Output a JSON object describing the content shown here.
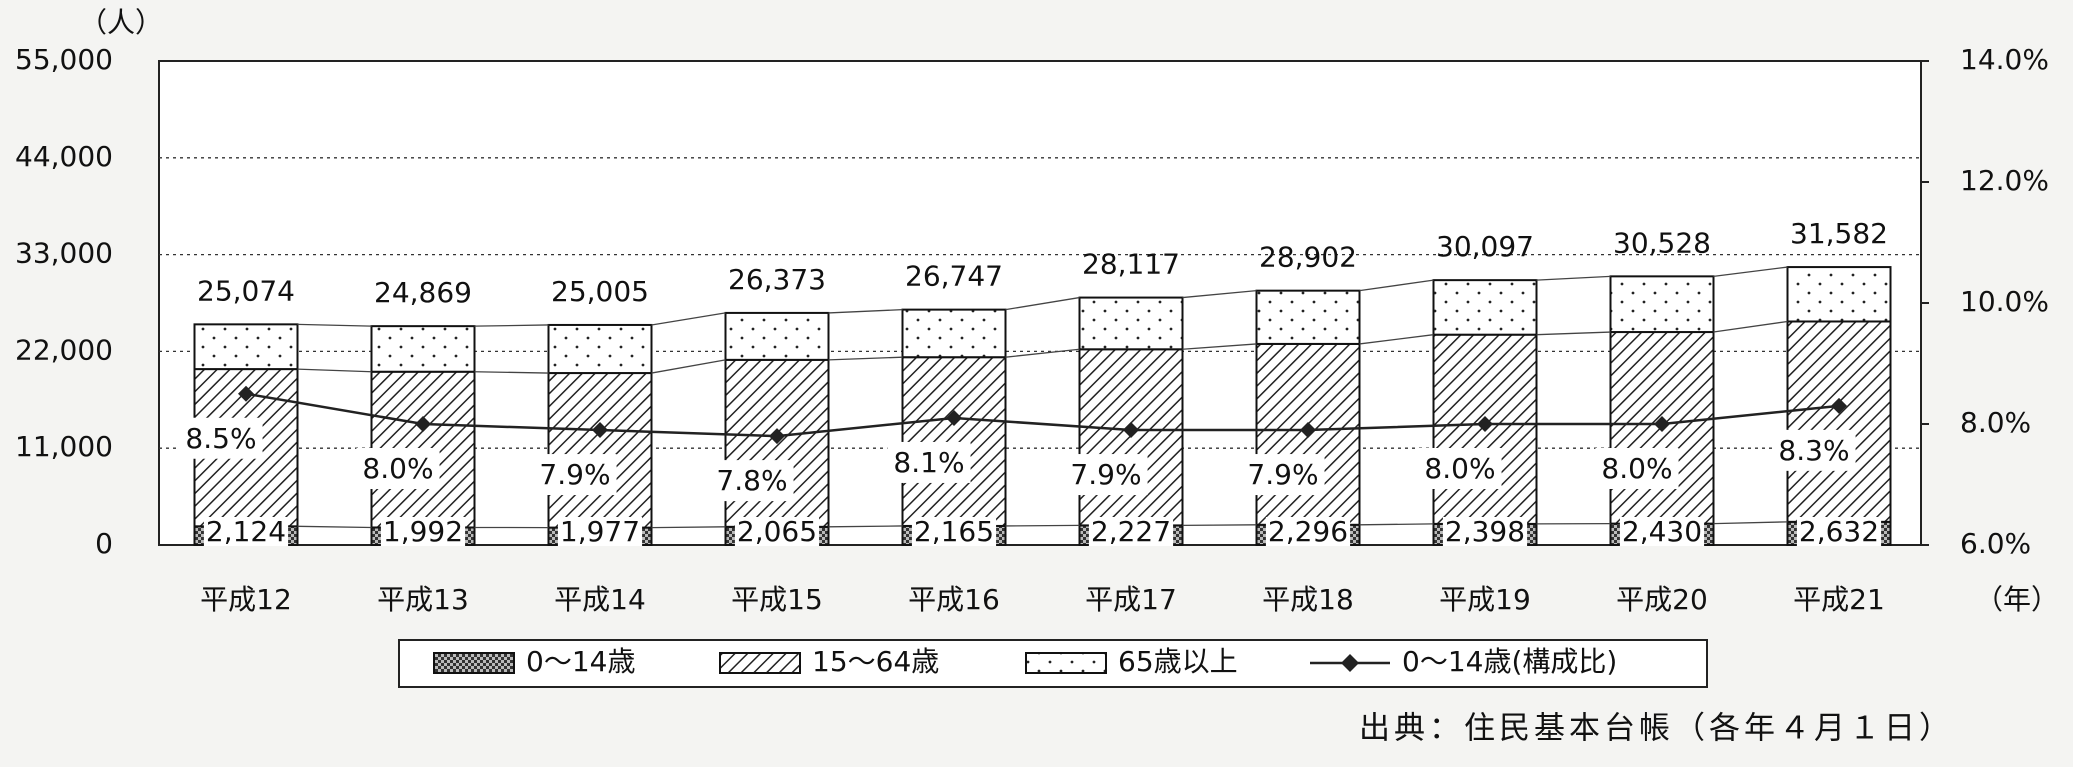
{
  "chart_data": {
    "type": "bar",
    "y_unit_label": "（人）",
    "x_unit_label": "（年）",
    "source": "出典：住民基本台帳（各年４月１日）",
    "categories": [
      "平成12",
      "平成13",
      "平成14",
      "平成15",
      "平成16",
      "平成17",
      "平成18",
      "平成19",
      "平成20",
      "平成21"
    ],
    "series": [
      {
        "name": "0～14歳",
        "color": "#555555",
        "pattern": "checker",
        "values": [
          2124,
          1992,
          1977,
          2065,
          2165,
          2227,
          2296,
          2398,
          2430,
          2632
        ]
      },
      {
        "name": "15～64歳",
        "color": "#222222",
        "pattern": "hatch",
        "values": [
          17866,
          17698,
          17563,
          18975,
          19175,
          20013,
          20554,
          21502,
          21770,
          22768
        ]
      },
      {
        "name": "65歳以上",
        "color": "#222222",
        "pattern": "dots",
        "values": [
          5084,
          5179,
          5465,
          5333,
          5407,
          5877,
          6052,
          6197,
          6328,
          6182
        ]
      },
      {
        "name": "0～14歳(構成比)",
        "type": "line",
        "axis": "y2",
        "color": "#222222",
        "values": [
          8.5,
          8.0,
          7.9,
          7.8,
          8.1,
          7.9,
          7.9,
          8.0,
          8.0,
          8.3
        ],
        "value_labels": [
          "8.5%",
          "8.0%",
          "7.9%",
          "7.8%",
          "8.1%",
          "7.9%",
          "7.9%",
          "8.0%",
          "8.0%",
          "8.3%"
        ]
      }
    ],
    "totals": [
      25074,
      24869,
      25005,
      26373,
      26747,
      28117,
      28902,
      30097,
      30528,
      31582
    ],
    "total_labels": [
      "25,074",
      "24,869",
      "25,005",
      "26,373",
      "26,747",
      "28,117",
      "28,902",
      "30,097",
      "30,528",
      "31,582"
    ],
    "bottom_value_labels": [
      "2,124",
      "1,992",
      "1,977",
      "2,065",
      "2,165",
      "2,227",
      "2,296",
      "2,398",
      "2,430",
      "2,632"
    ],
    "ylim": [
      0,
      55000
    ],
    "yticks": [
      {
        "value": 0,
        "label": "0"
      },
      {
        "value": 11000,
        "label": "11,000"
      },
      {
        "value": 22000,
        "label": "22,000"
      },
      {
        "value": 33000,
        "label": "33,000"
      },
      {
        "value": 44000,
        "label": "44,000"
      },
      {
        "value": 55000,
        "label": "55,000"
      }
    ],
    "y2lim": [
      6,
      14
    ],
    "y2ticks": [
      {
        "value": 6,
        "label": "6.0%"
      },
      {
        "value": 8,
        "label": "8.0%"
      },
      {
        "value": 10,
        "label": "10.0%"
      },
      {
        "value": 12,
        "label": "12.0%"
      },
      {
        "value": 14,
        "label": "14.0%"
      }
    ],
    "grid": true,
    "legend": "bottom"
  }
}
